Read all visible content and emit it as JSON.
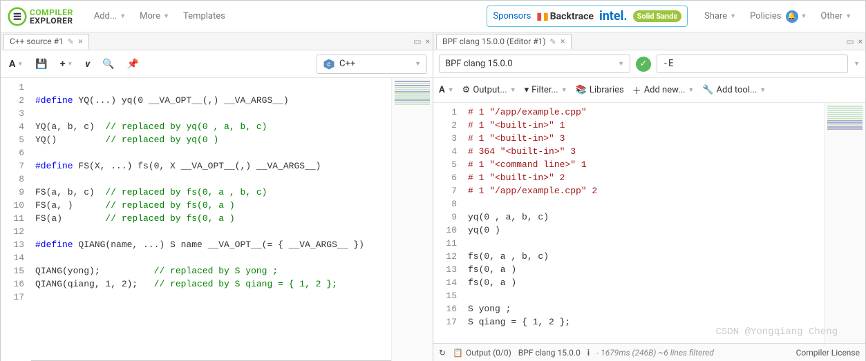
{
  "logo": {
    "line1": "COMPILER",
    "line2": "EXPLORER",
    "icon_color": "#67c52a"
  },
  "nav": {
    "add": "Add...",
    "more": "More",
    "templates": "Templates",
    "share": "Share",
    "policies": "Policies",
    "other": "Other"
  },
  "sponsors": {
    "label": "Sponsors",
    "backtrace": "Backtrace",
    "intel": "intel.",
    "solid": "Solid Sands"
  },
  "left": {
    "tab_title": "C++ source #1",
    "lang_label": "C++",
    "lines": [
      {
        "n": 1,
        "html": ""
      },
      {
        "n": 2,
        "html": "<span class='kw-pre'>#define</span> YQ(...) yq(0 __VA_OPT__(,) __VA_ARGS__)"
      },
      {
        "n": 3,
        "html": ""
      },
      {
        "n": 4,
        "html": "YQ(a, b, c)  <span class='cmt'>// replaced by yq(0 , a, b, c)</span>"
      },
      {
        "n": 5,
        "html": "YQ()         <span class='cmt'>// replaced by yq(0 )</span>"
      },
      {
        "n": 6,
        "html": ""
      },
      {
        "n": 7,
        "html": "<span class='kw-pre'>#define</span> FS(X, ...) fs(0, X __VA_OPT__(,) __VA_ARGS__)"
      },
      {
        "n": 8,
        "html": ""
      },
      {
        "n": 9,
        "html": "FS(a, b, c)  <span class='cmt'>// replaced by fs(0, a , b, c)</span>"
      },
      {
        "n": 10,
        "html": "FS(a, )      <span class='cmt'>// replaced by fs(0, a )</span>"
      },
      {
        "n": 11,
        "html": "FS(a)        <span class='cmt'>// replaced by fs(0, a )</span>"
      },
      {
        "n": 12,
        "html": ""
      },
      {
        "n": 13,
        "html": "<span class='kw-pre'>#define</span> QIANG(name, ...) S name __VA_OPT__(= { __VA_ARGS__ })"
      },
      {
        "n": 14,
        "html": ""
      },
      {
        "n": 15,
        "html": "QIANG(yong);          <span class='cmt'>// replaced by S yong ;</span>"
      },
      {
        "n": 16,
        "html": "QIANG(qiang, 1, 2);   <span class='cmt'>// replaced by S qiang = { 1, 2 };</span>"
      },
      {
        "n": 17,
        "html": ""
      }
    ]
  },
  "right": {
    "tab_title": "BPF clang 15.0.0 (Editor #1)",
    "compiler": "BPF clang 15.0.0",
    "args": "-E",
    "filter": {
      "output": "Output...",
      "filter": "Filter...",
      "libraries": "Libraries",
      "addnew": "Add new...",
      "addtool": "Add tool..."
    },
    "lines": [
      {
        "n": 1,
        "html": "<span class='str'># 1 \"/app/example.cpp\"</span>"
      },
      {
        "n": 2,
        "html": "<span class='str'># 1 \"&lt;built-in&gt;\" 1</span>"
      },
      {
        "n": 3,
        "html": "<span class='str'># 1 \"&lt;built-in&gt;\" 3</span>"
      },
      {
        "n": 4,
        "html": "<span class='str'># 364 \"&lt;built-in&gt;\" 3</span>"
      },
      {
        "n": 5,
        "html": "<span class='str'># 1 \"&lt;command line&gt;\" 1</span>"
      },
      {
        "n": 6,
        "html": "<span class='str'># 1 \"&lt;built-in&gt;\" 2</span>"
      },
      {
        "n": 7,
        "html": "<span class='str'># 1 \"/app/example.cpp\" 2</span>"
      },
      {
        "n": 8,
        "html": ""
      },
      {
        "n": 9,
        "html": "yq(0 , a, b, c)"
      },
      {
        "n": 10,
        "html": "yq(0 )"
      },
      {
        "n": 11,
        "html": ""
      },
      {
        "n": 12,
        "html": "fs(0, a , b, c)"
      },
      {
        "n": 13,
        "html": "fs(0, a )"
      },
      {
        "n": 14,
        "html": "fs(0, a )"
      },
      {
        "n": 15,
        "html": ""
      },
      {
        "n": 16,
        "html": "S yong ;"
      },
      {
        "n": 17,
        "html": "S qiang = { 1, 2 };"
      }
    ],
    "status": {
      "output_label": "Output (0/0)",
      "compiler_label": "BPF clang 15.0.0",
      "timing": "- 1679ms (246B) ~6 lines filtered",
      "license": "Compiler License"
    }
  },
  "watermark": "CSDN @Yongqiang Cheng"
}
